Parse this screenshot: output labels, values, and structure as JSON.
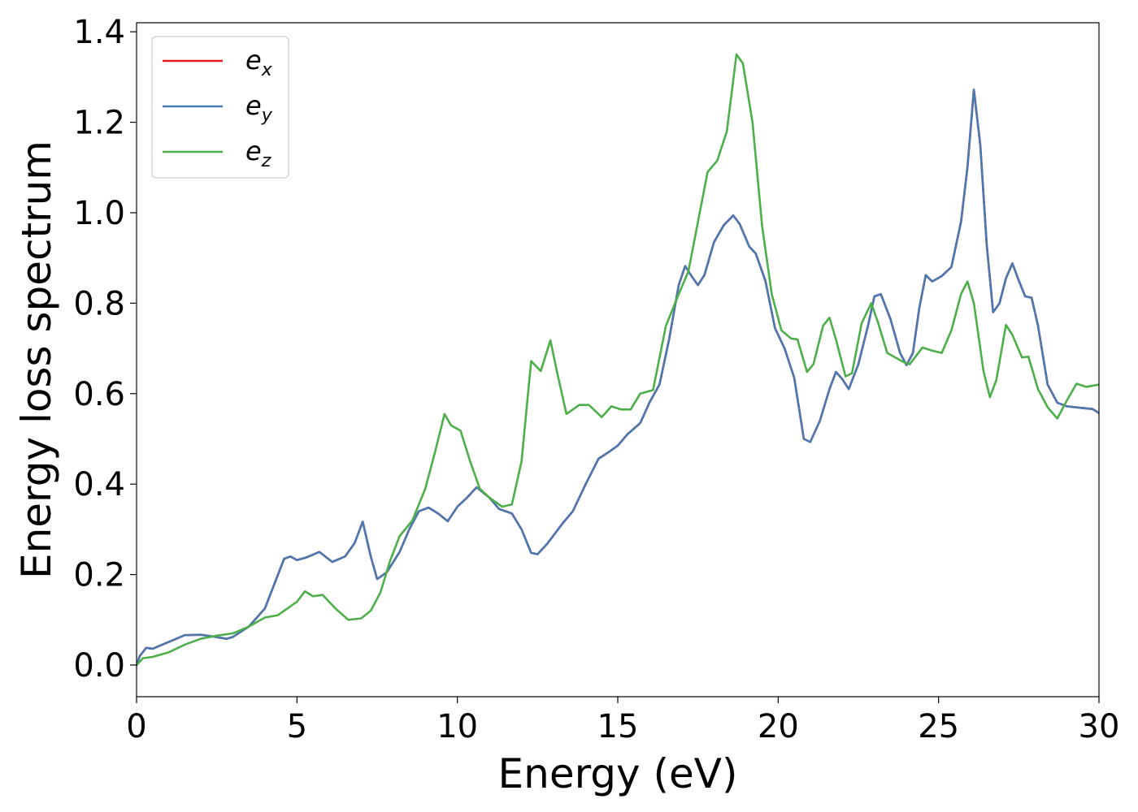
{
  "chart_data": {
    "type": "line",
    "xlabel": "Energy (eV)",
    "ylabel": "Energy loss spectrum",
    "xlim": [
      0,
      30
    ],
    "ylim": [
      -0.07,
      1.42
    ],
    "xticks": [
      0,
      5,
      10,
      15,
      20,
      25,
      30
    ],
    "yticks": [
      0.0,
      0.2,
      0.4,
      0.6,
      0.8,
      1.0,
      1.2,
      1.4
    ],
    "xtick_labels": [
      "0",
      "5",
      "10",
      "15",
      "20",
      "25",
      "30"
    ],
    "ytick_labels": [
      "0.0",
      "0.2",
      "0.4",
      "0.6",
      "0.8",
      "1.0",
      "1.2",
      "1.4"
    ],
    "grid": false,
    "legend": "top-left",
    "series": [
      {
        "name": "e",
        "subscript": "x",
        "color": "#e41a1c",
        "points": [
          [
            0,
            0.0
          ],
          [
            0.1,
            0.02
          ],
          [
            0.3,
            0.038
          ],
          [
            0.5,
            0.036
          ],
          [
            0.8,
            0.045
          ],
          [
            1.2,
            0.057
          ],
          [
            1.5,
            0.066
          ],
          [
            2.0,
            0.067
          ],
          [
            2.4,
            0.063
          ],
          [
            2.8,
            0.058
          ],
          [
            3.0,
            0.062
          ],
          [
            3.5,
            0.085
          ],
          [
            4.0,
            0.125
          ],
          [
            4.3,
            0.18
          ],
          [
            4.6,
            0.235
          ],
          [
            4.8,
            0.24
          ],
          [
            5.0,
            0.232
          ],
          [
            5.3,
            0.238
          ],
          [
            5.7,
            0.25
          ],
          [
            6.1,
            0.228
          ],
          [
            6.5,
            0.24
          ],
          [
            6.8,
            0.27
          ],
          [
            7.05,
            0.317
          ],
          [
            7.3,
            0.24
          ],
          [
            7.5,
            0.19
          ],
          [
            7.8,
            0.205
          ],
          [
            8.2,
            0.25
          ],
          [
            8.5,
            0.3
          ],
          [
            8.8,
            0.34
          ],
          [
            9.1,
            0.348
          ],
          [
            9.4,
            0.335
          ],
          [
            9.7,
            0.318
          ],
          [
            10.0,
            0.35
          ],
          [
            10.3,
            0.37
          ],
          [
            10.6,
            0.393
          ],
          [
            11.0,
            0.37
          ],
          [
            11.3,
            0.345
          ],
          [
            11.7,
            0.335
          ],
          [
            12.0,
            0.3
          ],
          [
            12.3,
            0.248
          ],
          [
            12.5,
            0.245
          ],
          [
            12.8,
            0.268
          ],
          [
            13.3,
            0.315
          ],
          [
            13.6,
            0.34
          ],
          [
            14.0,
            0.4
          ],
          [
            14.4,
            0.456
          ],
          [
            14.7,
            0.47
          ],
          [
            15.0,
            0.485
          ],
          [
            15.3,
            0.51
          ],
          [
            15.7,
            0.535
          ],
          [
            16.0,
            0.582
          ],
          [
            16.3,
            0.62
          ],
          [
            16.6,
            0.72
          ],
          [
            16.9,
            0.84
          ],
          [
            17.1,
            0.882
          ],
          [
            17.3,
            0.86
          ],
          [
            17.5,
            0.84
          ],
          [
            17.7,
            0.862
          ],
          [
            18.0,
            0.935
          ],
          [
            18.3,
            0.972
          ],
          [
            18.6,
            0.994
          ],
          [
            18.8,
            0.975
          ],
          [
            19.1,
            0.925
          ],
          [
            19.3,
            0.91
          ],
          [
            19.6,
            0.85
          ],
          [
            19.9,
            0.745
          ],
          [
            20.2,
            0.7
          ],
          [
            20.5,
            0.635
          ],
          [
            20.8,
            0.5
          ],
          [
            21.0,
            0.493
          ],
          [
            21.3,
            0.54
          ],
          [
            21.6,
            0.61
          ],
          [
            21.8,
            0.648
          ],
          [
            22.0,
            0.632
          ],
          [
            22.2,
            0.61
          ],
          [
            22.5,
            0.665
          ],
          [
            22.8,
            0.75
          ],
          [
            23.0,
            0.815
          ],
          [
            23.2,
            0.82
          ],
          [
            23.5,
            0.765
          ],
          [
            23.8,
            0.69
          ],
          [
            24.0,
            0.663
          ],
          [
            24.2,
            0.69
          ],
          [
            24.4,
            0.79
          ],
          [
            24.6,
            0.862
          ],
          [
            24.8,
            0.848
          ],
          [
            25.1,
            0.86
          ],
          [
            25.4,
            0.88
          ],
          [
            25.7,
            0.98
          ],
          [
            25.9,
            1.1
          ],
          [
            26.1,
            1.272
          ],
          [
            26.3,
            1.15
          ],
          [
            26.5,
            0.93
          ],
          [
            26.7,
            0.78
          ],
          [
            26.9,
            0.8
          ],
          [
            27.1,
            0.855
          ],
          [
            27.3,
            0.888
          ],
          [
            27.5,
            0.85
          ],
          [
            27.7,
            0.815
          ],
          [
            27.9,
            0.812
          ],
          [
            28.1,
            0.75
          ],
          [
            28.4,
            0.62
          ],
          [
            28.7,
            0.58
          ],
          [
            29.0,
            0.572
          ],
          [
            29.5,
            0.568
          ],
          [
            29.8,
            0.566
          ],
          [
            30.0,
            0.557
          ]
        ]
      },
      {
        "name": "e",
        "subscript": "y",
        "color": "#4a78b0",
        "points": [
          [
            0,
            0.0
          ],
          [
            0.1,
            0.02
          ],
          [
            0.3,
            0.038
          ],
          [
            0.5,
            0.036
          ],
          [
            0.8,
            0.045
          ],
          [
            1.2,
            0.057
          ],
          [
            1.5,
            0.066
          ],
          [
            2.0,
            0.067
          ],
          [
            2.4,
            0.063
          ],
          [
            2.8,
            0.058
          ],
          [
            3.0,
            0.062
          ],
          [
            3.5,
            0.085
          ],
          [
            4.0,
            0.125
          ],
          [
            4.3,
            0.18
          ],
          [
            4.6,
            0.235
          ],
          [
            4.8,
            0.24
          ],
          [
            5.0,
            0.232
          ],
          [
            5.3,
            0.238
          ],
          [
            5.7,
            0.25
          ],
          [
            6.1,
            0.228
          ],
          [
            6.5,
            0.24
          ],
          [
            6.8,
            0.27
          ],
          [
            7.05,
            0.317
          ],
          [
            7.3,
            0.24
          ],
          [
            7.5,
            0.19
          ],
          [
            7.8,
            0.205
          ],
          [
            8.2,
            0.25
          ],
          [
            8.5,
            0.3
          ],
          [
            8.8,
            0.34
          ],
          [
            9.1,
            0.348
          ],
          [
            9.4,
            0.335
          ],
          [
            9.7,
            0.318
          ],
          [
            10.0,
            0.35
          ],
          [
            10.3,
            0.37
          ],
          [
            10.6,
            0.393
          ],
          [
            11.0,
            0.37
          ],
          [
            11.3,
            0.345
          ],
          [
            11.7,
            0.335
          ],
          [
            12.0,
            0.3
          ],
          [
            12.3,
            0.248
          ],
          [
            12.5,
            0.245
          ],
          [
            12.8,
            0.268
          ],
          [
            13.3,
            0.315
          ],
          [
            13.6,
            0.34
          ],
          [
            14.0,
            0.4
          ],
          [
            14.4,
            0.456
          ],
          [
            14.7,
            0.47
          ],
          [
            15.0,
            0.485
          ],
          [
            15.3,
            0.51
          ],
          [
            15.7,
            0.535
          ],
          [
            16.0,
            0.582
          ],
          [
            16.3,
            0.62
          ],
          [
            16.6,
            0.72
          ],
          [
            16.9,
            0.84
          ],
          [
            17.1,
            0.882
          ],
          [
            17.3,
            0.86
          ],
          [
            17.5,
            0.84
          ],
          [
            17.7,
            0.862
          ],
          [
            18.0,
            0.935
          ],
          [
            18.3,
            0.972
          ],
          [
            18.6,
            0.994
          ],
          [
            18.8,
            0.975
          ],
          [
            19.1,
            0.925
          ],
          [
            19.3,
            0.91
          ],
          [
            19.6,
            0.85
          ],
          [
            19.9,
            0.745
          ],
          [
            20.2,
            0.7
          ],
          [
            20.5,
            0.635
          ],
          [
            20.8,
            0.5
          ],
          [
            21.0,
            0.493
          ],
          [
            21.3,
            0.54
          ],
          [
            21.6,
            0.61
          ],
          [
            21.8,
            0.648
          ],
          [
            22.0,
            0.632
          ],
          [
            22.2,
            0.61
          ],
          [
            22.5,
            0.665
          ],
          [
            22.8,
            0.75
          ],
          [
            23.0,
            0.815
          ],
          [
            23.2,
            0.82
          ],
          [
            23.5,
            0.765
          ],
          [
            23.8,
            0.69
          ],
          [
            24.0,
            0.663
          ],
          [
            24.2,
            0.69
          ],
          [
            24.4,
            0.79
          ],
          [
            24.6,
            0.862
          ],
          [
            24.8,
            0.848
          ],
          [
            25.1,
            0.86
          ],
          [
            25.4,
            0.88
          ],
          [
            25.7,
            0.98
          ],
          [
            25.9,
            1.1
          ],
          [
            26.1,
            1.272
          ],
          [
            26.3,
            1.15
          ],
          [
            26.5,
            0.93
          ],
          [
            26.7,
            0.78
          ],
          [
            26.9,
            0.8
          ],
          [
            27.1,
            0.855
          ],
          [
            27.3,
            0.888
          ],
          [
            27.5,
            0.85
          ],
          [
            27.7,
            0.815
          ],
          [
            27.9,
            0.812
          ],
          [
            28.1,
            0.75
          ],
          [
            28.4,
            0.62
          ],
          [
            28.7,
            0.58
          ],
          [
            29.0,
            0.572
          ],
          [
            29.5,
            0.568
          ],
          [
            29.8,
            0.566
          ],
          [
            30.0,
            0.557
          ]
        ]
      },
      {
        "name": "e",
        "subscript": "z",
        "color": "#4daf4a",
        "points": [
          [
            0,
            0.0
          ],
          [
            0.2,
            0.015
          ],
          [
            0.5,
            0.018
          ],
          [
            1.0,
            0.028
          ],
          [
            1.5,
            0.045
          ],
          [
            2.0,
            0.058
          ],
          [
            2.5,
            0.065
          ],
          [
            3.0,
            0.07
          ],
          [
            3.5,
            0.085
          ],
          [
            4.0,
            0.105
          ],
          [
            4.4,
            0.11
          ],
          [
            4.7,
            0.125
          ],
          [
            5.0,
            0.14
          ],
          [
            5.25,
            0.163
          ],
          [
            5.5,
            0.152
          ],
          [
            5.8,
            0.155
          ],
          [
            6.2,
            0.125
          ],
          [
            6.6,
            0.1
          ],
          [
            7.0,
            0.103
          ],
          [
            7.3,
            0.12
          ],
          [
            7.6,
            0.16
          ],
          [
            7.9,
            0.23
          ],
          [
            8.2,
            0.285
          ],
          [
            8.6,
            0.32
          ],
          [
            9.0,
            0.39
          ],
          [
            9.3,
            0.47
          ],
          [
            9.6,
            0.555
          ],
          [
            9.8,
            0.53
          ],
          [
            10.1,
            0.518
          ],
          [
            10.4,
            0.45
          ],
          [
            10.7,
            0.39
          ],
          [
            11.0,
            0.37
          ],
          [
            11.4,
            0.35
          ],
          [
            11.7,
            0.355
          ],
          [
            12.0,
            0.45
          ],
          [
            12.3,
            0.672
          ],
          [
            12.6,
            0.65
          ],
          [
            12.9,
            0.718
          ],
          [
            13.1,
            0.65
          ],
          [
            13.4,
            0.555
          ],
          [
            13.8,
            0.575
          ],
          [
            14.1,
            0.575
          ],
          [
            14.5,
            0.548
          ],
          [
            14.8,
            0.572
          ],
          [
            15.1,
            0.565
          ],
          [
            15.4,
            0.565
          ],
          [
            15.7,
            0.6
          ],
          [
            16.1,
            0.608
          ],
          [
            16.5,
            0.75
          ],
          [
            16.9,
            0.82
          ],
          [
            17.2,
            0.87
          ],
          [
            17.5,
            0.98
          ],
          [
            17.8,
            1.09
          ],
          [
            18.1,
            1.115
          ],
          [
            18.4,
            1.18
          ],
          [
            18.7,
            1.35
          ],
          [
            18.9,
            1.33
          ],
          [
            19.2,
            1.2
          ],
          [
            19.5,
            0.97
          ],
          [
            19.8,
            0.82
          ],
          [
            20.1,
            0.74
          ],
          [
            20.4,
            0.722
          ],
          [
            20.6,
            0.72
          ],
          [
            20.9,
            0.648
          ],
          [
            21.1,
            0.665
          ],
          [
            21.4,
            0.75
          ],
          [
            21.6,
            0.768
          ],
          [
            21.8,
            0.72
          ],
          [
            22.1,
            0.638
          ],
          [
            22.3,
            0.645
          ],
          [
            22.6,
            0.755
          ],
          [
            22.9,
            0.8
          ],
          [
            23.1,
            0.76
          ],
          [
            23.4,
            0.69
          ],
          [
            23.9,
            0.67
          ],
          [
            24.1,
            0.665
          ],
          [
            24.5,
            0.702
          ],
          [
            24.8,
            0.695
          ],
          [
            25.1,
            0.69
          ],
          [
            25.4,
            0.74
          ],
          [
            25.7,
            0.82
          ],
          [
            25.9,
            0.848
          ],
          [
            26.1,
            0.8
          ],
          [
            26.4,
            0.65
          ],
          [
            26.6,
            0.592
          ],
          [
            26.8,
            0.63
          ],
          [
            27.1,
            0.752
          ],
          [
            27.3,
            0.73
          ],
          [
            27.6,
            0.68
          ],
          [
            27.8,
            0.682
          ],
          [
            28.1,
            0.61
          ],
          [
            28.4,
            0.57
          ],
          [
            28.7,
            0.545
          ],
          [
            29.0,
            0.585
          ],
          [
            29.3,
            0.622
          ],
          [
            29.6,
            0.615
          ],
          [
            30.0,
            0.62
          ]
        ]
      }
    ]
  }
}
